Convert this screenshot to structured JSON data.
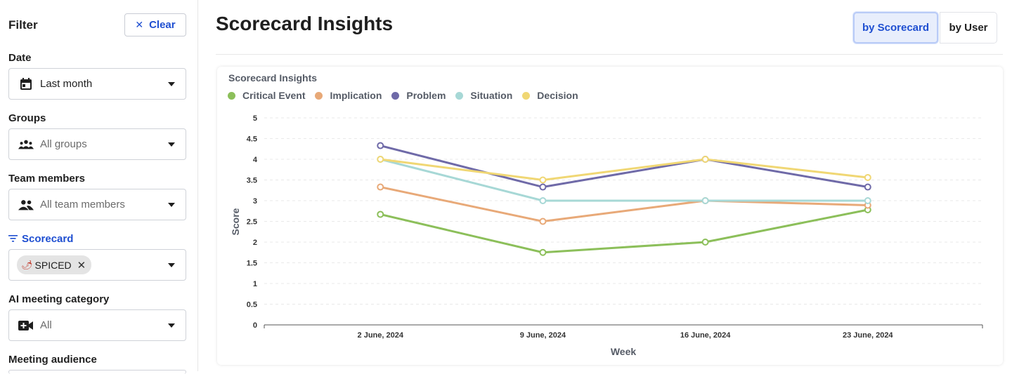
{
  "sidebar": {
    "title": "Filter",
    "clear_label": "Clear",
    "filters": {
      "date": {
        "label": "Date",
        "value": "Last month"
      },
      "groups": {
        "label": "Groups",
        "placeholder": "All groups"
      },
      "team_members": {
        "label": "Team members",
        "placeholder": "All team members"
      },
      "scorecard": {
        "label": "Scorecard",
        "chip": "SPICED"
      },
      "ai_category": {
        "label": "AI meeting category",
        "placeholder": "All"
      },
      "audience": {
        "label": "Meeting audience"
      }
    }
  },
  "main": {
    "title": "Scorecard Insights",
    "toggle": {
      "by_scorecard": "by Scorecard",
      "by_user": "by User",
      "selected": "by Scorecard"
    }
  },
  "chart_data": {
    "type": "line",
    "title": "Scorecard Insights",
    "xlabel": "Week",
    "ylabel": "Score",
    "ylim": [
      0,
      5
    ],
    "yticks": [
      "0",
      "0.5",
      "1",
      "1.5",
      "2",
      "2.5",
      "3",
      "3.5",
      "4",
      "4.5",
      "5"
    ],
    "categories": [
      "2 June, 2024",
      "9 June, 2024",
      "16 June, 2024",
      "23 June, 2024"
    ],
    "grid": true,
    "legend_position": "top-left",
    "series": [
      {
        "name": "Critical Event",
        "color": "#8cbf5a",
        "values": [
          2.67,
          1.75,
          2.0,
          2.78
        ]
      },
      {
        "name": "Implication",
        "color": "#e8a978",
        "values": [
          3.33,
          2.5,
          3.0,
          2.89
        ]
      },
      {
        "name": "Problem",
        "color": "#6f6aa8",
        "values": [
          4.33,
          3.33,
          4.0,
          3.33
        ]
      },
      {
        "name": "Situation",
        "color": "#a7d8d6",
        "values": [
          4.0,
          3.0,
          3.0,
          3.0
        ]
      },
      {
        "name": "Decision",
        "color": "#f0d774",
        "values": [
          4.0,
          3.5,
          4.0,
          3.56
        ]
      }
    ]
  }
}
